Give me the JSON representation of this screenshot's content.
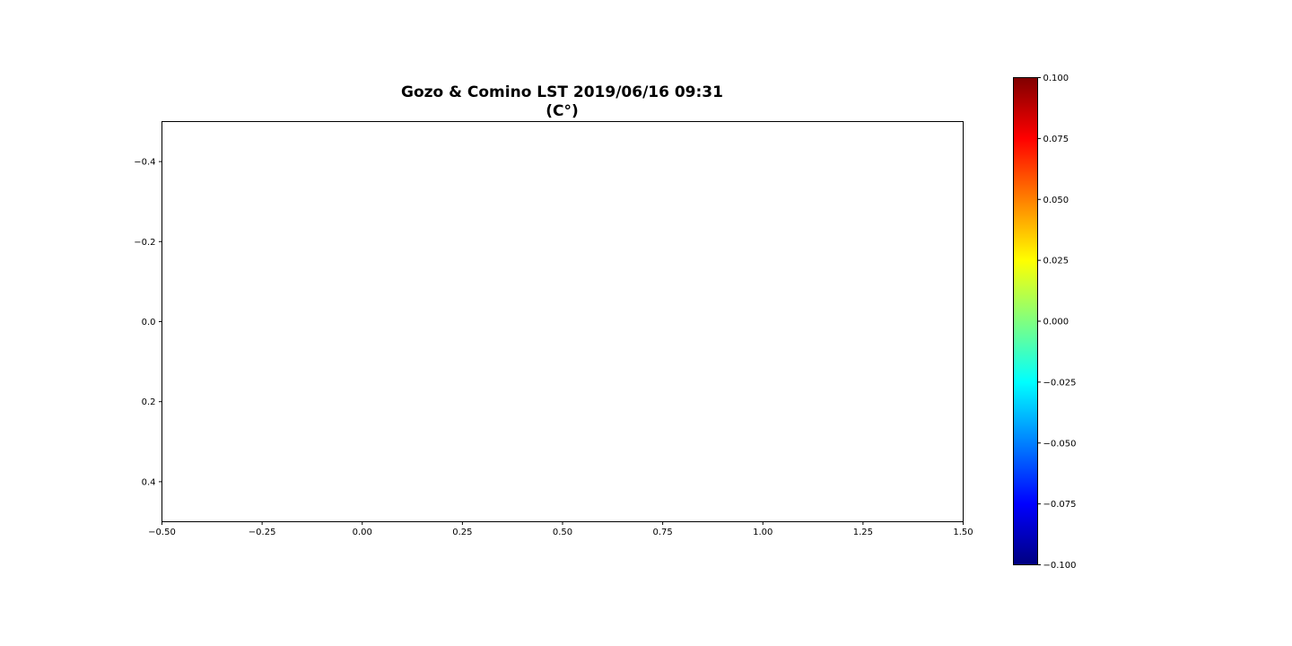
{
  "chart_data": {
    "type": "heatmap",
    "title_lines": [
      "Gozo & Comino LST 2019/06/16 09:31",
      "(C°)"
    ],
    "xlabel": "",
    "ylabel": "",
    "xlim": [
      -0.5,
      1.5
    ],
    "ylim": [
      0.5,
      -0.5
    ],
    "y_inverted": true,
    "x_ticks": [
      -0.5,
      -0.25,
      0.0,
      0.25,
      0.5,
      0.75,
      1.0,
      1.25,
      1.5
    ],
    "x_tick_labels": [
      "−0.50",
      "−0.25",
      "0.00",
      "0.25",
      "0.50",
      "0.75",
      "1.00",
      "1.25",
      "1.50"
    ],
    "y_ticks": [
      -0.4,
      -0.2,
      0.0,
      0.2,
      0.4
    ],
    "y_tick_labels": [
      "−0.4",
      "−0.2",
      "0.0",
      "0.2",
      "0.4"
    ],
    "grid": false,
    "values": [],
    "colorbar": {
      "colormap": "jet",
      "range": [
        -0.1,
        0.1
      ],
      "ticks": [
        0.1,
        0.075,
        0.05,
        0.025,
        0.0,
        -0.025,
        -0.05,
        -0.075,
        -0.1
      ],
      "tick_labels": [
        "0.100",
        "0.075",
        "0.050",
        "0.025",
        "0.000",
        "−0.025",
        "−0.050",
        "−0.075",
        "−0.100"
      ],
      "colors": [
        "#800000",
        "#ff0000",
        "#ff8000",
        "#ffff00",
        "#80ff80",
        "#00ffff",
        "#0080ff",
        "#0000ff",
        "#000080"
      ]
    }
  }
}
